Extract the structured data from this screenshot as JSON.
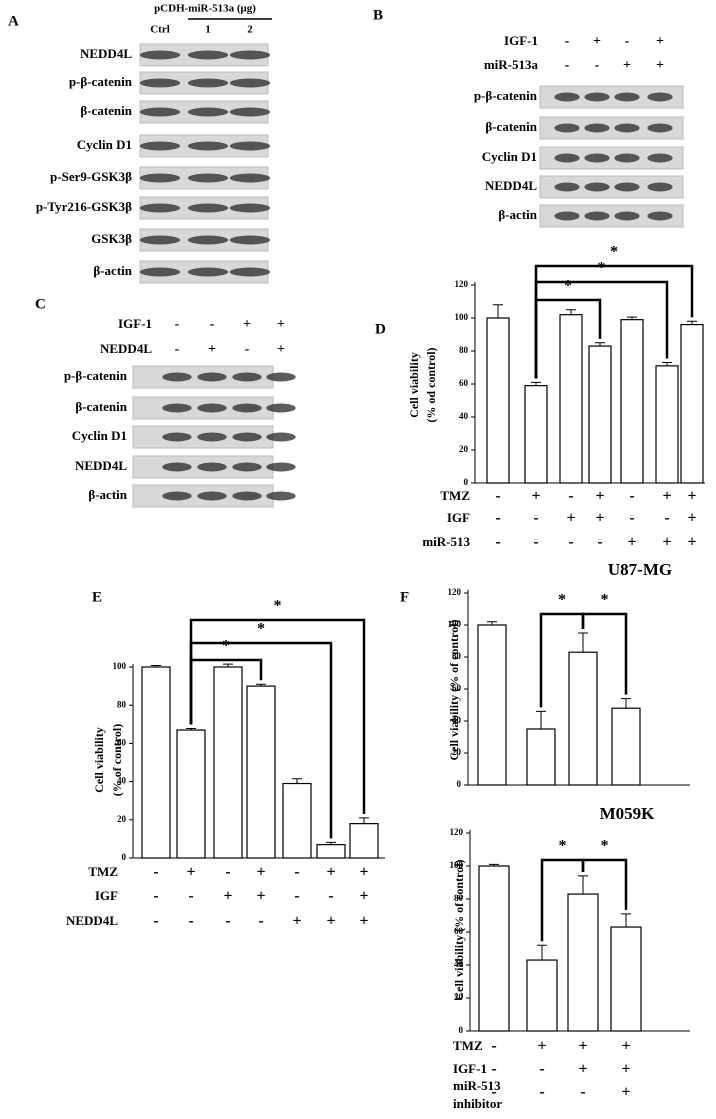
{
  "blots": [
    {
      "panel": "A",
      "header": "pCDH-miR-513a (μg)",
      "lanes": [
        "Ctrl",
        "1",
        "2"
      ],
      "rows": [
        "NEDD4L",
        "p-β-catenin",
        "β-catenin",
        "Cyclin D1",
        "p-Ser9-GSK3β",
        "p-Tyr216-GSK3β",
        "GSK3β",
        "β-actin"
      ]
    },
    {
      "panel": "B",
      "conditions": [
        {
          "name": "IGF-1",
          "signs": [
            "-",
            "+",
            "-",
            "+"
          ]
        },
        {
          "name": "miR-513a",
          "signs": [
            "-",
            "-",
            "+",
            "+"
          ]
        }
      ],
      "rows": [
        "p-β-catenin",
        "β-catenin",
        "Cyclin D1",
        "NEDD4L",
        "β-actin"
      ]
    },
    {
      "panel": "C",
      "conditions": [
        {
          "name": "IGF-1",
          "signs": [
            "-",
            "-",
            "+",
            "+"
          ]
        },
        {
          "name": "NEDD4L",
          "signs": [
            "-",
            "+",
            "-",
            "+"
          ]
        }
      ],
      "rows": [
        "p-β-catenin",
        "β-catenin",
        "Cyclin D1",
        "NEDD4L",
        "β-actin"
      ]
    }
  ],
  "chart_data": [
    {
      "type": "bar",
      "panel": "D",
      "ylabel": [
        "Cell viability",
        "(% od control)"
      ],
      "ylim": [
        0,
        120
      ],
      "yticks": [
        0,
        20,
        40,
        60,
        80,
        100,
        120
      ],
      "values": [
        100,
        59,
        102,
        83,
        99,
        71,
        96
      ],
      "errors": [
        8,
        2,
        3,
        2,
        1.5,
        2,
        2
      ],
      "color": "#ffffff",
      "conditions": [
        {
          "name": "TMZ",
          "signs": [
            "-",
            "+",
            "-",
            "+",
            "-",
            "+",
            "+"
          ]
        },
        {
          "name": "IGF",
          "signs": [
            "-",
            "-",
            "+",
            "+",
            "-",
            "-",
            "+"
          ]
        },
        {
          "name": "miR-513",
          "signs": [
            "-",
            "-",
            "-",
            "-",
            "+",
            "+",
            "+"
          ]
        }
      ],
      "annotations": [
        "*",
        "*",
        "*"
      ]
    },
    {
      "type": "bar",
      "panel": "E",
      "ylabel": [
        "Cell viability",
        "(% of control)"
      ],
      "ylim": [
        0,
        100
      ],
      "yticks": [
        0,
        20,
        40,
        60,
        80,
        100
      ],
      "values": [
        100,
        67,
        100,
        90,
        39,
        7,
        18
      ],
      "errors": [
        0.8,
        0.8,
        1.5,
        1,
        2.5,
        1.2,
        3
      ],
      "color": "#ffffff",
      "conditions": [
        {
          "name": "TMZ",
          "signs": [
            "-",
            "+",
            "-",
            "+",
            "-",
            "+",
            "+"
          ]
        },
        {
          "name": "IGF",
          "signs": [
            "-",
            "-",
            "+",
            "+",
            "-",
            "-",
            "+"
          ]
        },
        {
          "name": "NEDD4L",
          "signs": [
            "-",
            "-",
            "-",
            "-",
            "+",
            "+",
            "+"
          ]
        }
      ],
      "annotations": [
        "*",
        "*",
        "*"
      ]
    },
    {
      "type": "bar",
      "panel": "F",
      "title": "U87-MG",
      "ylabel": [
        "Cell viability (% of control)"
      ],
      "ylim": [
        0,
        120
      ],
      "yticks": [
        0,
        20,
        40,
        60,
        80,
        100,
        120
      ],
      "values": [
        100,
        35,
        83,
        48
      ],
      "errors": [
        2,
        11,
        12,
        6
      ],
      "color": "#ffffff",
      "annotations": [
        "*",
        "*"
      ]
    },
    {
      "type": "bar",
      "title": "M059K",
      "ylabel": [
        "Cell viability (% of control)"
      ],
      "ylim": [
        0,
        120
      ],
      "yticks": [
        0,
        20,
        40,
        60,
        80,
        100,
        120
      ],
      "values": [
        100,
        43,
        83,
        63
      ],
      "errors": [
        1,
        9,
        11,
        8
      ],
      "color": "#ffffff",
      "conditions": [
        {
          "name": "TMZ",
          "signs": [
            "-",
            "+",
            "+",
            "+"
          ]
        },
        {
          "name": "IGF-1",
          "signs": [
            "-",
            "-",
            "+",
            "+"
          ]
        },
        {
          "name": [
            "miR-513",
            "inhibitor"
          ],
          "signs": [
            "-",
            "-",
            "-",
            "+"
          ]
        }
      ],
      "annotations": [
        "*",
        "*"
      ]
    }
  ]
}
